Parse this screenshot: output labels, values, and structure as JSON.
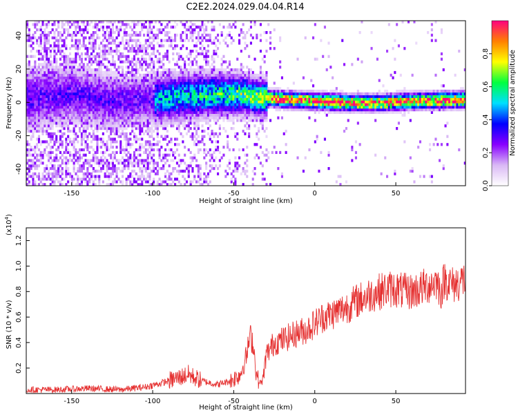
{
  "title": "C2E2.2024.029.04.04.R14",
  "chart_data": [
    {
      "type": "heatmap",
      "xlabel": "Height of straight line (km)",
      "ylabel": "Frequency (Hz)",
      "xlim": [
        -178,
        93
      ],
      "ylim": [
        -50,
        49
      ],
      "xticks": [
        -150,
        -100,
        -50,
        0,
        50
      ],
      "yticks": [
        -40,
        -20,
        0,
        20,
        40
      ],
      "colorbar": {
        "label": "Normalized spectral amplitude",
        "range": [
          0.0,
          1.0
        ],
        "ticks": [
          0.0,
          0.2,
          0.4,
          0.6,
          0.8
        ],
        "tick_labels": [
          "0.0",
          "0.2",
          "0.4",
          "0.6",
          "0.8"
        ],
        "colors": [
          "#ffffff",
          "#d9b8f5",
          "#8800ff",
          "#0000ff",
          "#00e0ff",
          "#00ff40",
          "#ffff00",
          "#ff8000",
          "#ff0080"
        ]
      },
      "ridge": [
        {
          "x": -175,
          "y": 2
        },
        {
          "x": -150,
          "y": 4
        },
        {
          "x": -125,
          "y": 0
        },
        {
          "x": -100,
          "y": 1
        },
        {
          "x": -80,
          "y": 3
        },
        {
          "x": -60,
          "y": 4
        },
        {
          "x": -45,
          "y": 4
        },
        {
          "x": -35,
          "y": 2
        },
        {
          "x": -20,
          "y": 1
        },
        {
          "x": 0,
          "y": 0
        },
        {
          "x": 20,
          "y": -1
        },
        {
          "x": 40,
          "y": -1
        },
        {
          "x": 60,
          "y": 0
        },
        {
          "x": 93,
          "y": 1
        }
      ]
    },
    {
      "type": "line",
      "xlabel": "Height of straight line (km)",
      "ylabel": "SNR (10 * v/v)",
      "yunit": "(x10",
      "yunit_exp": "4",
      "yunit_close": ")",
      "xlim": [
        -178,
        93
      ],
      "ylim": [
        0,
        1.3
      ],
      "xticks": [
        -150,
        -100,
        -50,
        0,
        50
      ],
      "yticks": [
        0.2,
        0.4,
        0.6,
        0.8,
        1.0,
        1.2
      ],
      "ytick_labels": [
        "0.2",
        "0.4",
        "0.6",
        "0.8",
        "1.0",
        "1.2"
      ],
      "series": [
        {
          "color": "#e53030",
          "x": [
            -178,
            -160,
            -140,
            -120,
            -105,
            -95,
            -85,
            -78,
            -70,
            -60,
            -52,
            -46,
            -42,
            -40,
            -38,
            -36,
            -34,
            -32,
            -30,
            -25,
            -20,
            -15,
            -10,
            -5,
            0,
            5,
            10,
            15,
            20,
            25,
            30,
            35,
            40,
            45,
            50,
            55,
            60,
            65,
            70,
            75,
            78,
            80,
            85,
            90,
            93
          ],
          "y": [
            0.03,
            0.03,
            0.04,
            0.03,
            0.05,
            0.08,
            0.12,
            0.15,
            0.1,
            0.07,
            0.1,
            0.15,
            0.3,
            0.45,
            0.4,
            0.15,
            0.08,
            0.1,
            0.3,
            0.4,
            0.42,
            0.45,
            0.48,
            0.5,
            0.55,
            0.6,
            0.62,
            0.65,
            0.68,
            0.72,
            0.75,
            0.78,
            0.8,
            0.82,
            0.82,
            0.8,
            0.8,
            0.82,
            0.85,
            0.88,
            0.8,
            0.9,
            0.85,
            0.88,
            0.9
          ]
        }
      ]
    }
  ]
}
